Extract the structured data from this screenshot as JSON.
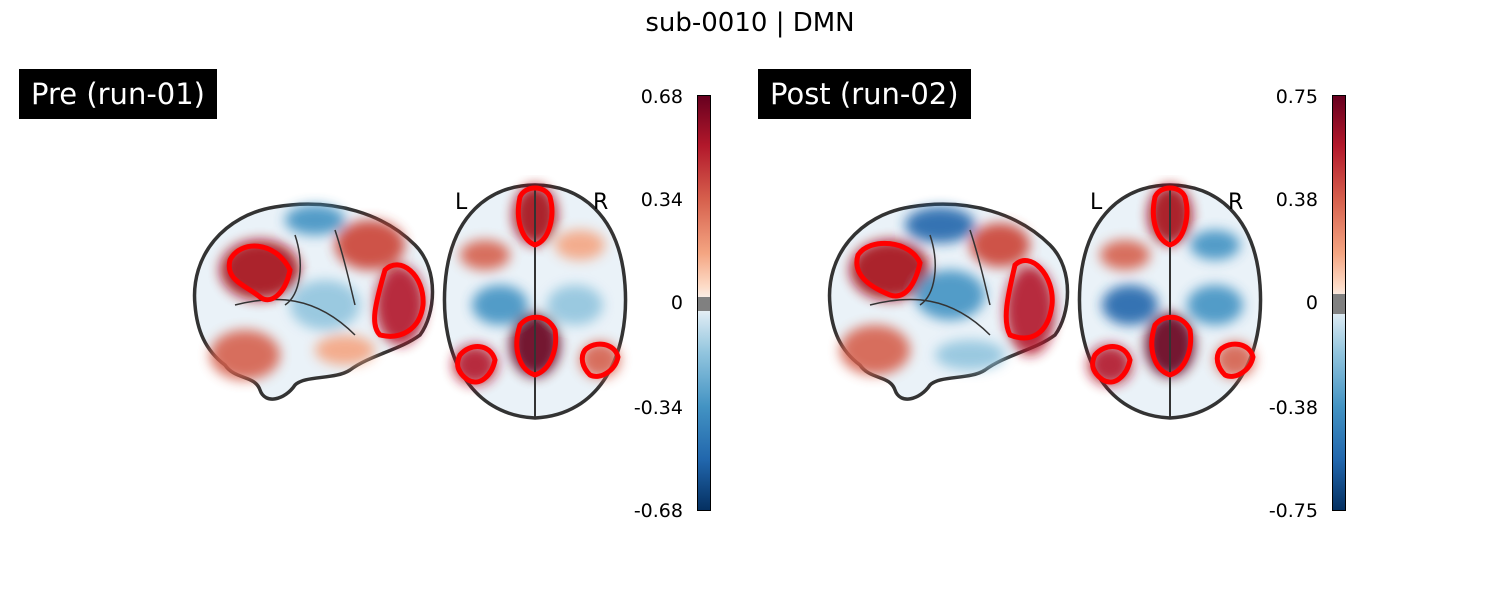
{
  "title": "sub-0010 | DMN",
  "panels": [
    {
      "label": "Pre (run-01)",
      "left_letter": "L",
      "right_letter": "R",
      "colorbar": {
        "ticks": [
          "0.68",
          "0.34",
          "0",
          "-0.34",
          "-0.68"
        ],
        "max": 0.68,
        "min": -0.68
      }
    },
    {
      "label": "Post (run-02)",
      "left_letter": "L",
      "right_letter": "R",
      "colorbar": {
        "ticks": [
          "0.75",
          "0.38",
          "0",
          "-0.38",
          "-0.75"
        ],
        "max": 0.75,
        "min": -0.75
      }
    }
  ],
  "colors": {
    "positive": "#67001f",
    "negative": "#053061",
    "contour": "#ff0000",
    "brain_outline": "#333333"
  }
}
